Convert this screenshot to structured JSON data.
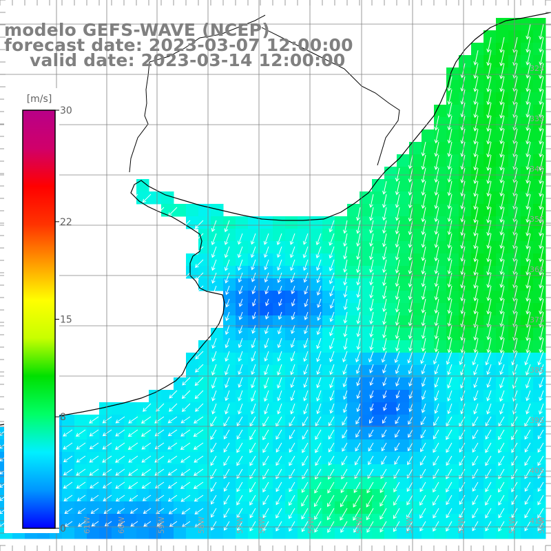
{
  "title": {
    "model": "modelo GEFS-WAVE (NCEP)",
    "forecast": "forecast date: 2023-03-07 12:00:00",
    "valid": "valid date: 2023-03-14 12:00:00"
  },
  "colorbar": {
    "unit": "[m/s]",
    "min": 0,
    "max": 30,
    "tick_labels": [
      "30",
      "22",
      "15",
      "8",
      "0"
    ],
    "tick_values": [
      30,
      22,
      15,
      8,
      0
    ],
    "gradient_colors": [
      "#0000ff",
      "#0096ff",
      "#00f0ff",
      "#00ff66",
      "#00e000",
      "#c8ff00",
      "#ffff00",
      "#ff9900",
      "#ff3300",
      "#ff0000",
      "#d0006a",
      "#b80088"
    ]
  },
  "axes": {
    "latitude_labels": [
      "32S",
      "33S",
      "34S",
      "35S",
      "36S",
      "37S",
      "38S",
      "39S",
      "40S",
      "41S"
    ],
    "longitude_labels": [
      "63W",
      "62W",
      "61W",
      "60W",
      "59W",
      "58W",
      "57W",
      "56W",
      "55W",
      "54W",
      "53W",
      "52W",
      "51W",
      "50W"
    ]
  },
  "colors": {
    "land": "#ffffff",
    "coastline": "#000000",
    "grid": "#808080",
    "arrows": "#ffffff",
    "axis_labels": "#a0a0a0",
    "title": "#808080"
  }
}
